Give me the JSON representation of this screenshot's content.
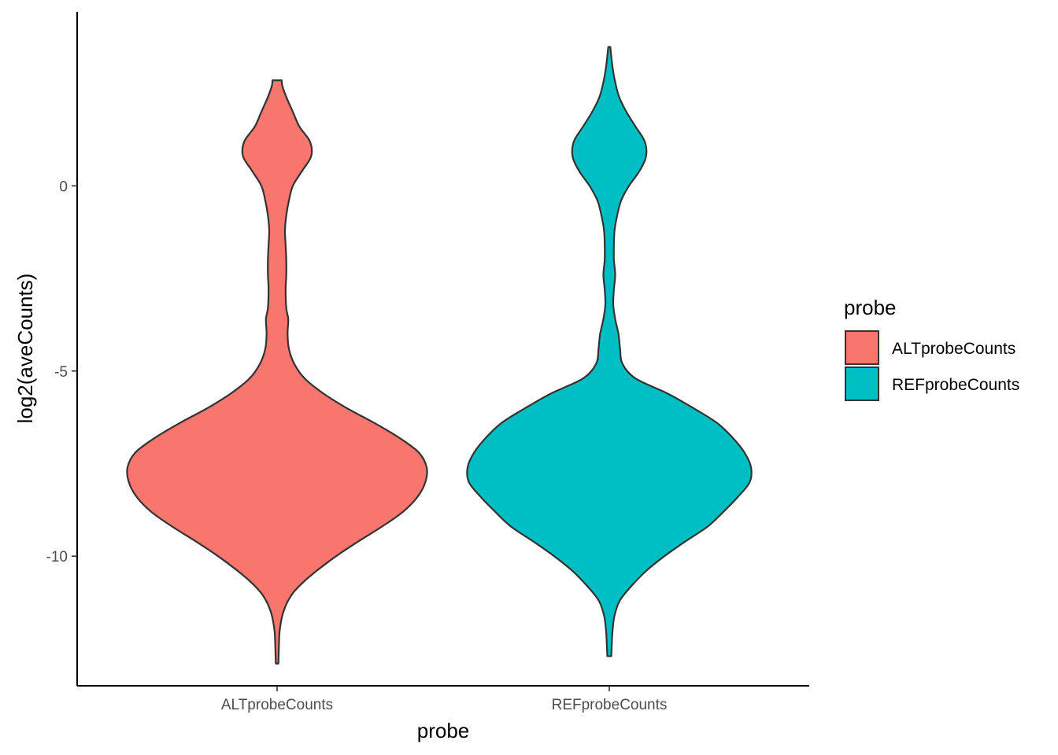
{
  "chart_data": {
    "type": "violin",
    "xlabel": "probe",
    "ylabel": "log2(aveCounts)",
    "ylim": [
      -13.5,
      4.7
    ],
    "y_ticks": [
      0,
      -5,
      -10
    ],
    "y_tick_labels": [
      "0",
      "-5",
      "-10"
    ],
    "categories": [
      "ALTprobeCounts",
      "REFprobeCounts"
    ],
    "colors": {
      "ALTprobeCounts": "#F8766D",
      "REFprobeCounts": "#00BFC4"
    },
    "outline_color": "#333333",
    "grid": false,
    "legend": {
      "title": "probe",
      "placement": "right",
      "entries": [
        "ALTprobeCounts",
        "REFprobeCounts"
      ]
    },
    "series": [
      {
        "category": "ALTprobeCounts",
        "y_range": [
          -12.9,
          2.85
        ],
        "density_half_width": [
          [
            -12.9,
            0.01
          ],
          [
            -12.3,
            0.015
          ],
          [
            -12.0,
            0.02
          ],
          [
            -11.6,
            0.04
          ],
          [
            -11.3,
            0.07
          ],
          [
            -11.0,
            0.12
          ],
          [
            -10.7,
            0.2
          ],
          [
            -10.4,
            0.3
          ],
          [
            -10.0,
            0.45
          ],
          [
            -9.6,
            0.62
          ],
          [
            -9.2,
            0.8
          ],
          [
            -8.8,
            0.96
          ],
          [
            -8.4,
            1.07
          ],
          [
            -8.0,
            1.13
          ],
          [
            -7.6,
            1.14
          ],
          [
            -7.2,
            1.08
          ],
          [
            -6.8,
            0.93
          ],
          [
            -6.4,
            0.74
          ],
          [
            -6.0,
            0.53
          ],
          [
            -5.6,
            0.35
          ],
          [
            -5.2,
            0.21
          ],
          [
            -4.8,
            0.13
          ],
          [
            -4.4,
            0.09
          ],
          [
            -4.0,
            0.08
          ],
          [
            -3.6,
            0.085
          ],
          [
            -3.3,
            0.07
          ],
          [
            -2.8,
            0.065
          ],
          [
            -2.4,
            0.07
          ],
          [
            -2.0,
            0.07
          ],
          [
            -1.6,
            0.065
          ],
          [
            -1.2,
            0.06
          ],
          [
            -0.8,
            0.07
          ],
          [
            -0.4,
            0.09
          ],
          [
            0.0,
            0.12
          ],
          [
            0.4,
            0.19
          ],
          [
            0.8,
            0.26
          ],
          [
            1.2,
            0.25
          ],
          [
            1.6,
            0.17
          ],
          [
            2.0,
            0.12
          ],
          [
            2.4,
            0.07
          ],
          [
            2.7,
            0.04
          ],
          [
            2.85,
            0.035
          ]
        ]
      },
      {
        "category": "REFprobeCounts",
        "y_range": [
          -12.7,
          3.75
        ],
        "density_half_width": [
          [
            -12.7,
            0.015
          ],
          [
            -12.3,
            0.02
          ],
          [
            -12.0,
            0.025
          ],
          [
            -11.6,
            0.04
          ],
          [
            -11.2,
            0.08
          ],
          [
            -10.8,
            0.17
          ],
          [
            -10.4,
            0.28
          ],
          [
            -10.0,
            0.42
          ],
          [
            -9.6,
            0.58
          ],
          [
            -9.2,
            0.75
          ],
          [
            -8.8,
            0.87
          ],
          [
            -8.4,
            0.98
          ],
          [
            -8.0,
            1.07
          ],
          [
            -7.6,
            1.08
          ],
          [
            -7.2,
            1.03
          ],
          [
            -6.8,
            0.94
          ],
          [
            -6.4,
            0.82
          ],
          [
            -6.0,
            0.64
          ],
          [
            -5.6,
            0.44
          ],
          [
            -5.2,
            0.2
          ],
          [
            -4.8,
            0.1
          ],
          [
            -4.4,
            0.082
          ],
          [
            -4.0,
            0.07
          ],
          [
            -3.6,
            0.045
          ],
          [
            -3.2,
            0.03
          ],
          [
            -2.8,
            0.035
          ],
          [
            -2.4,
            0.045
          ],
          [
            -2.0,
            0.035
          ],
          [
            -1.6,
            0.035
          ],
          [
            -1.2,
            0.04
          ],
          [
            -0.8,
            0.06
          ],
          [
            -0.4,
            0.09
          ],
          [
            0.0,
            0.15
          ],
          [
            0.4,
            0.23
          ],
          [
            0.8,
            0.28
          ],
          [
            1.2,
            0.27
          ],
          [
            1.6,
            0.2
          ],
          [
            2.0,
            0.13
          ],
          [
            2.4,
            0.075
          ],
          [
            2.8,
            0.045
          ],
          [
            3.2,
            0.025
          ],
          [
            3.6,
            0.012
          ],
          [
            3.75,
            0.008
          ]
        ]
      }
    ]
  }
}
